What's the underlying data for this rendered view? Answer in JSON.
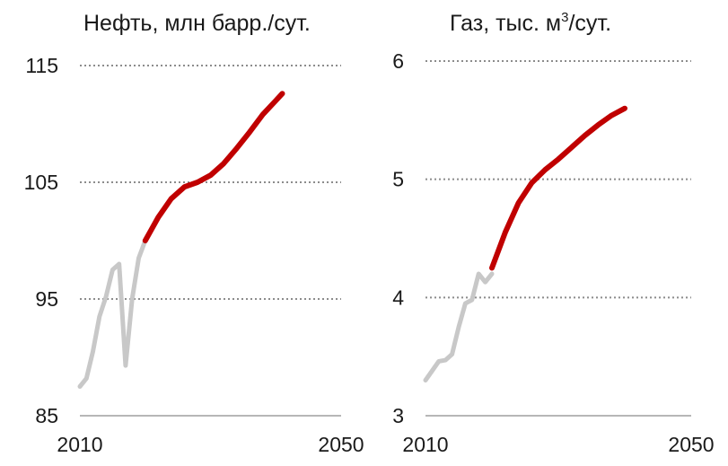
{
  "chart_data": [
    {
      "type": "line",
      "title": "Нефть, млн барр./сут.",
      "xlabel": "",
      "ylabel": "",
      "xlim": [
        2010,
        2050
      ],
      "ylim": [
        85,
        115
      ],
      "x_tick_labels": [
        "2010",
        "2050"
      ],
      "y_ticks": [
        85,
        95,
        105,
        115
      ],
      "y_tick_labels": [
        "85",
        "95",
        "105",
        "115"
      ],
      "grid": "horizontal dotted",
      "series": [
        {
          "color": "#c8c8c8",
          "points": [
            [
              2010,
              87.5
            ],
            [
              2011,
              88.2
            ],
            [
              2012,
              90.5
            ],
            [
              2013,
              93.5
            ],
            [
              2014,
              95.2
            ],
            [
              2015,
              97.5
            ],
            [
              2016,
              98.0
            ],
            [
              2017,
              89.3
            ],
            [
              2018,
              95.0
            ],
            [
              2019,
              98.5
            ],
            [
              2020,
              100.0
            ]
          ]
        },
        {
          "color": "#c00000",
          "points": [
            [
              2020,
              100.0
            ],
            [
              2022,
              102.0
            ],
            [
              2024,
              103.6
            ],
            [
              2026,
              104.6
            ],
            [
              2028,
              105.0
            ],
            [
              2030,
              105.6
            ],
            [
              2032,
              106.6
            ],
            [
              2034,
              107.9
            ],
            [
              2036,
              109.3
            ],
            [
              2038,
              110.8
            ],
            [
              2040,
              112.0
            ],
            [
              2041,
              112.6
            ]
          ]
        }
      ]
    },
    {
      "type": "line",
      "title": "Газ, тыс. м",
      "title_superscript": "3",
      "title_suffix": "/сут.",
      "xlabel": "",
      "ylabel": "",
      "xlim": [
        2010,
        2050
      ],
      "ylim": [
        3,
        6
      ],
      "x_tick_labels": [
        "2010",
        "2050"
      ],
      "y_ticks": [
        3,
        4,
        5,
        6
      ],
      "y_tick_labels": [
        "3",
        "4",
        "5",
        "6"
      ],
      "grid": "horizontal dotted",
      "series": [
        {
          "color": "#c8c8c8",
          "points": [
            [
              2010,
              3.3
            ],
            [
              2011,
              3.38
            ],
            [
              2012,
              3.46
            ],
            [
              2013,
              3.47
            ],
            [
              2014,
              3.52
            ],
            [
              2015,
              3.75
            ],
            [
              2016,
              3.95
            ],
            [
              2017,
              3.98
            ],
            [
              2018,
              4.2
            ],
            [
              2019,
              4.13
            ],
            [
              2020,
              4.2
            ]
          ]
        },
        {
          "color": "#c00000",
          "points": [
            [
              2020,
              4.25
            ],
            [
              2022,
              4.55
            ],
            [
              2024,
              4.8
            ],
            [
              2026,
              4.97
            ],
            [
              2028,
              5.08
            ],
            [
              2030,
              5.17
            ],
            [
              2032,
              5.27
            ],
            [
              2034,
              5.37
            ],
            [
              2036,
              5.46
            ],
            [
              2038,
              5.54
            ],
            [
              2040,
              5.6
            ]
          ]
        }
      ]
    }
  ]
}
